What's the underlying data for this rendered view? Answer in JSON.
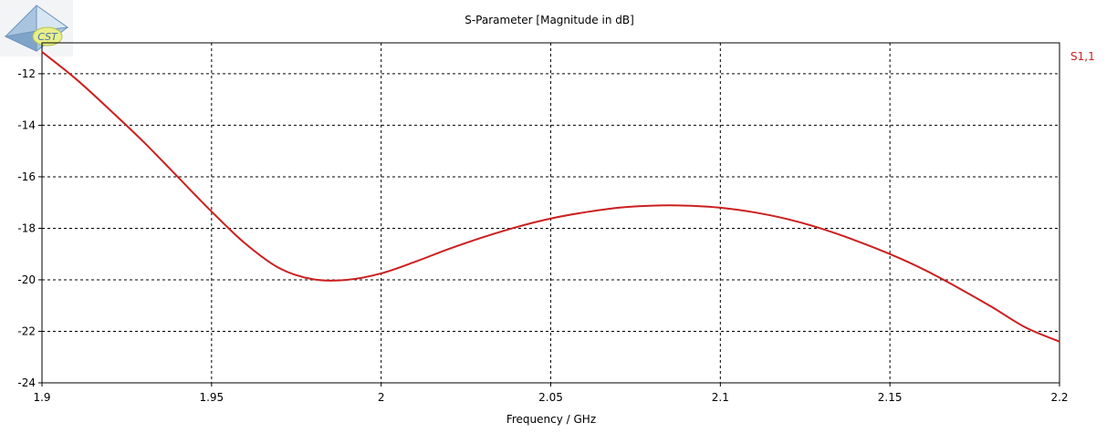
{
  "logo": {
    "icon": "cst-logo-icon",
    "text": "CST"
  },
  "chart_data": {
    "type": "line",
    "title": "S-Parameter [Magnitude in dB]",
    "xlabel": "Frequency / GHz",
    "ylabel": "",
    "xlim": [
      1.9,
      2.2
    ],
    "ylim": [
      -24,
      -10.8
    ],
    "x_ticks": [
      "1.9",
      "1.95",
      "2",
      "2.05",
      "2.1",
      "2.15",
      "2.2"
    ],
    "x_tick_values": [
      1.9,
      1.95,
      2.0,
      2.05,
      2.1,
      2.15,
      2.2
    ],
    "y_ticks": [
      "-12",
      "-14",
      "-16",
      "-18",
      "-20",
      "-22",
      "-24"
    ],
    "y_tick_values": [
      -12,
      -14,
      -16,
      -18,
      -20,
      -22,
      -24
    ],
    "grid": true,
    "legend_position": "right",
    "series": [
      {
        "name": "S1,1",
        "color": "#cc1f1f",
        "x": [
          1.9,
          1.91,
          1.92,
          1.93,
          1.94,
          1.95,
          1.96,
          1.97,
          1.98,
          1.99,
          2.0,
          2.01,
          2.02,
          2.03,
          2.04,
          2.05,
          2.06,
          2.07,
          2.08,
          2.09,
          2.1,
          2.11,
          2.12,
          2.13,
          2.14,
          2.15,
          2.16,
          2.17,
          2.18,
          2.19,
          2.2
        ],
        "y": [
          -11.15,
          -12.2,
          -13.4,
          -14.65,
          -16.0,
          -17.35,
          -18.6,
          -19.55,
          -19.98,
          -20.0,
          -19.75,
          -19.3,
          -18.8,
          -18.35,
          -17.95,
          -17.62,
          -17.38,
          -17.2,
          -17.12,
          -17.12,
          -17.2,
          -17.38,
          -17.65,
          -18.02,
          -18.48,
          -19.0,
          -19.6,
          -20.3,
          -21.05,
          -21.85,
          -22.4
        ]
      }
    ]
  }
}
